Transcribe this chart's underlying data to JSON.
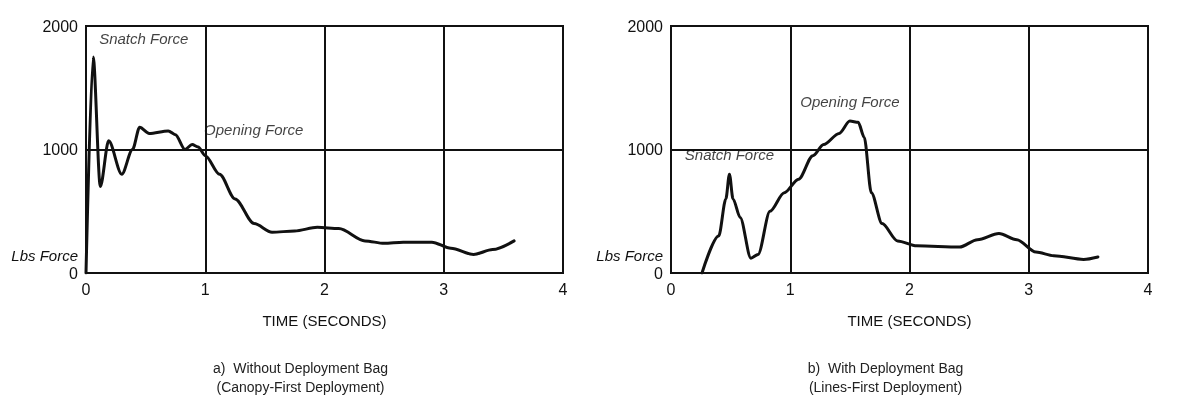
{
  "chart_data": [
    {
      "type": "line",
      "title": "a)  Without Deployment Bag\n(Canopy-First Deployment)",
      "xlabel": "TIME (SECONDS)",
      "ylabel": "Lbs Force",
      "xlim": [
        0,
        4
      ],
      "xticks": [
        0,
        1,
        2,
        3,
        4
      ],
      "ylim": [
        0,
        2000
      ],
      "yticks": [
        0,
        1000,
        2000
      ],
      "grid": true,
      "marker": "none",
      "line_style": "solid",
      "annotations": [
        {
          "text": "Snatch Force",
          "x": 0.06,
          "y": 1750
        },
        {
          "text": "Opening Force",
          "x": 0.94,
          "y": 1020
        }
      ],
      "series": [
        {
          "color": "#111111",
          "x": [
            0,
            0.06,
            0.12,
            0.19,
            0.3,
            0.39,
            0.45,
            0.53,
            0.69,
            0.75,
            0.83,
            0.89,
            0.94,
            1.0,
            1.12,
            1.25,
            1.41,
            1.56,
            1.75,
            1.94,
            2.12,
            2.34,
            2.5,
            2.66,
            2.9,
            3.06,
            3.25,
            3.41,
            3.59
          ],
          "values": [
            0,
            1750,
            700,
            1070,
            800,
            1000,
            1180,
            1130,
            1150,
            1120,
            1000,
            1040,
            1020,
            950,
            800,
            600,
            400,
            330,
            340,
            370,
            360,
            260,
            240,
            250,
            250,
            200,
            150,
            190,
            260
          ]
        }
      ]
    },
    {
      "type": "line",
      "title": "b)  With Deployment Bag\n(Lines-First Deployment)",
      "xlabel": "TIME (SECONDS)",
      "ylabel": "Lbs Force",
      "xlim": [
        0,
        4
      ],
      "xticks": [
        0,
        1,
        2,
        3,
        4
      ],
      "ylim": [
        0,
        2000
      ],
      "yticks": [
        0,
        1000,
        2000
      ],
      "grid": true,
      "marker": "none",
      "line_style": "solid",
      "annotations": [
        {
          "text": "Snatch Force",
          "x": 0.49,
          "y": 800
        },
        {
          "text": "Opening Force",
          "x": 1.5,
          "y": 1230
        }
      ],
      "series": [
        {
          "color": "#111111",
          "x": [
            0.26,
            0.4,
            0.46,
            0.49,
            0.52,
            0.58,
            0.67,
            0.73,
            0.83,
            0.95,
            1.07,
            1.19,
            1.28,
            1.41,
            1.5,
            1.57,
            1.62,
            1.68,
            1.77,
            1.9,
            2.06,
            2.42,
            2.57,
            2.75,
            2.9,
            3.06,
            3.21,
            3.46,
            3.58
          ],
          "values": [
            0,
            300,
            600,
            800,
            600,
            450,
            120,
            150,
            500,
            650,
            760,
            950,
            1040,
            1130,
            1230,
            1220,
            1100,
            650,
            400,
            260,
            220,
            210,
            270,
            320,
            270,
            170,
            140,
            110,
            130
          ]
        }
      ]
    }
  ]
}
